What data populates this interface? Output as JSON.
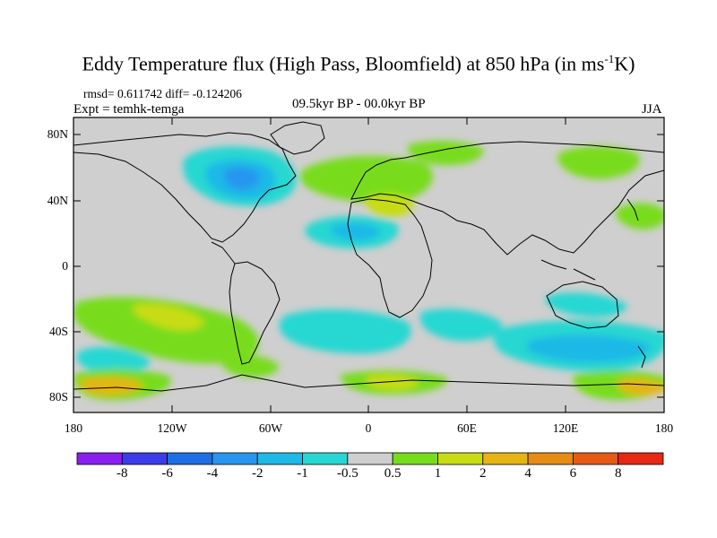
{
  "title": {
    "main": "Eddy Temperature flux (High Pass, Bloomfield) at 850 hPa (in ms",
    "superscript": "-1",
    "end": "K)"
  },
  "stats": "rmsd= 0.611742 diff= -0.124206",
  "experiment": "Expt = temhk-temga",
  "period": "09.5kyr BP - 00.0kyr BP",
  "season": "JJA",
  "axes": {
    "y_labels": [
      "80N",
      "40N",
      "0",
      "40S",
      "80S"
    ],
    "x_labels": [
      "180",
      "120W",
      "60W",
      "0",
      "60E",
      "120E",
      "180"
    ]
  },
  "colorbar": {
    "labels": [
      "-8",
      "-6",
      "-4",
      "-2",
      "-1",
      "-0.5",
      "0.5",
      "1",
      "2",
      "4",
      "6",
      "8"
    ],
    "colors": [
      "#8a1ff0",
      "#3c3ce8",
      "#1e6ee6",
      "#2896f0",
      "#1eb9e6",
      "#28d7d2",
      "#cfcfcf",
      "#78dc1e",
      "#c8dc14",
      "#e6b414",
      "#e68c14",
      "#e65a14",
      "#e62814"
    ]
  }
}
